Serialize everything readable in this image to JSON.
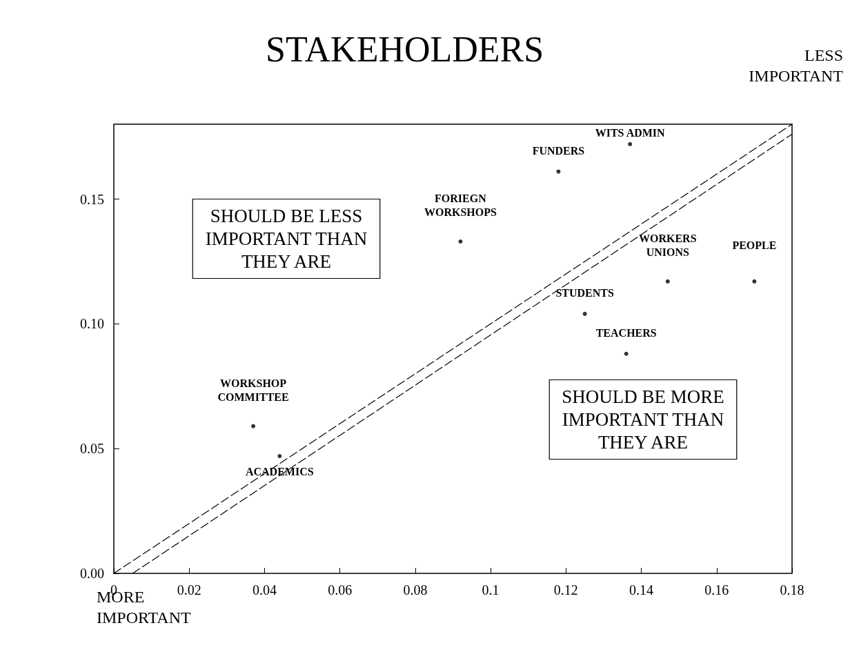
{
  "chart_data": {
    "type": "scatter",
    "title": "STAKEHOLDERS",
    "xlim": [
      0,
      0.18
    ],
    "xticks": [
      0,
      0.02,
      0.04,
      0.06,
      0.08,
      0.1,
      0.12,
      0.14,
      0.16,
      0.18
    ],
    "ylim": [
      0,
      0.18
    ],
    "yticks": [
      {
        "value": 0,
        "label": "0.00"
      },
      {
        "value": 0.05,
        "label": "0.05"
      },
      {
        "value": 0.1,
        "label": "0.10"
      },
      {
        "value": 0.15,
        "label": "0.15"
      }
    ],
    "grid": false,
    "marker": "circle",
    "series": [
      {
        "color": "#000000",
        "x": [
          0.137,
          0.118,
          0.092,
          0.147,
          0.17,
          0.125,
          0.136,
          0.037,
          0.044
        ],
        "values": [
          0.172,
          0.161,
          0.133,
          0.117,
          0.117,
          0.104,
          0.088,
          0.059,
          0.047
        ]
      },
      {
        "type": "line",
        "color": "#000000",
        "marker": "none",
        "line_style": "dashed",
        "x": [
          0,
          0.18
        ],
        "values": [
          0,
          0.18
        ]
      },
      {
        "type": "line",
        "color": "#000000",
        "marker": "none",
        "line_style": "dashed",
        "x": [
          0.005,
          0.18
        ],
        "values": [
          0,
          0.176
        ]
      }
    ],
    "annotations": [
      {
        "text": "WITS ADMIN",
        "x": 0.137,
        "y": 0.172
      },
      {
        "text": "FUNDERS",
        "x": 0.118,
        "y": 0.161
      },
      {
        "text": "FORIEGN\nWORKSHOPS",
        "x": 0.092,
        "y": 0.133
      },
      {
        "text": "WORKERS\nUNIONS",
        "x": 0.147,
        "y": 0.117
      },
      {
        "text": "PEOPLE",
        "x": 0.17,
        "y": 0.117
      },
      {
        "text": "STUDENTS",
        "x": 0.125,
        "y": 0.104
      },
      {
        "text": "TEACHERS",
        "x": 0.136,
        "y": 0.088
      },
      {
        "text": "WORKSHOP\nCOMMITTEE",
        "x": 0.037,
        "y": 0.059
      },
      {
        "text": "ACADEMICS",
        "x": 0.044,
        "y": 0.047
      },
      "SHOULD BE LESS\nIMPORTANT THAN\nTHEY ARE",
      "SHOULD BE MORE\nIMPORTANT THAN\nTHEY ARE",
      "LESS\nIMPORTANT",
      "MORE\nIMPORTANT"
    ]
  }
}
